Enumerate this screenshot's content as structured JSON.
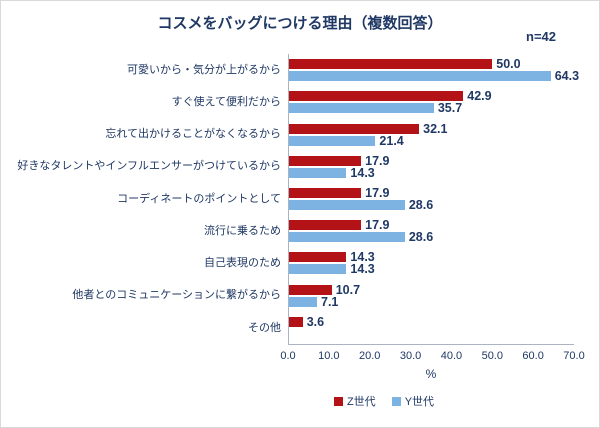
{
  "title": "コスメをバッグにつける理由（複数回答）",
  "n_label": "n=42",
  "chart_data": {
    "type": "bar",
    "orientation": "horizontal",
    "title": "コスメをバッグにつける理由（複数回答）",
    "sample_size": "n=42",
    "categories": [
      "可愛いから・気分が上がるから",
      "すぐ使えて便利だから",
      "忘れて出かけることがなくなるから",
      "好きなタレントやインフルエンサーがつけているから",
      "コーディネートのポイントとして",
      "流行に乗るため",
      "自己表現のため",
      "他者とのコミュニケーションに繋がるから",
      "その他"
    ],
    "series": [
      {
        "key": "z",
        "name": "Z世代",
        "color": "#b31217",
        "values": [
          50.0,
          42.9,
          32.1,
          17.9,
          17.9,
          17.9,
          14.3,
          10.7,
          3.6
        ]
      },
      {
        "key": "y",
        "name": "Y世代",
        "color": "#7db3e2",
        "values": [
          64.3,
          35.7,
          21.4,
          14.3,
          28.6,
          28.6,
          14.3,
          7.1,
          null
        ]
      }
    ],
    "xlabel": "%",
    "xlim": [
      0,
      70
    ],
    "xticks": [
      "0.0",
      "10.0",
      "20.0",
      "30.0",
      "40.0",
      "50.0",
      "60.0",
      "70.0"
    ],
    "grid": false,
    "legend_position": "bottom"
  }
}
